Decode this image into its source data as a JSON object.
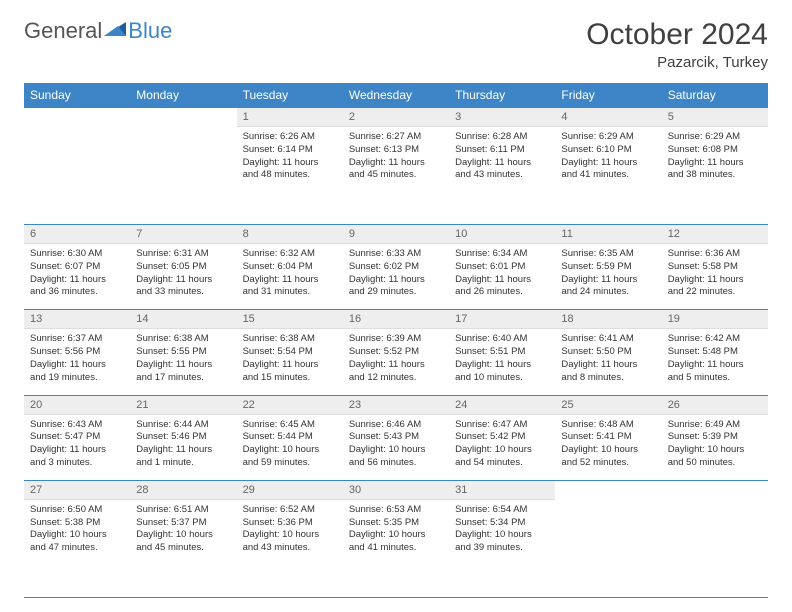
{
  "logo": {
    "part1": "General",
    "part2": "Blue"
  },
  "title": "October 2024",
  "location": "Pazarcik, Turkey",
  "colors": {
    "header_bg": "#3d85c6",
    "header_text": "#ffffff",
    "daynum_bg": "#eeeeee",
    "border": "#3d85c6",
    "logo_accent": "#3d85c6"
  },
  "typography": {
    "title_fontsize": 30,
    "location_fontsize": 15,
    "header_fontsize": 12,
    "daynum_fontsize": 11,
    "body_fontsize": 9.5
  },
  "day_headers": [
    "Sunday",
    "Monday",
    "Tuesday",
    "Wednesday",
    "Thursday",
    "Friday",
    "Saturday"
  ],
  "weeks": [
    [
      null,
      null,
      {
        "n": "1",
        "sr": "Sunrise: 6:26 AM",
        "ss": "Sunset: 6:14 PM",
        "dl": "Daylight: 11 hours and 48 minutes."
      },
      {
        "n": "2",
        "sr": "Sunrise: 6:27 AM",
        "ss": "Sunset: 6:13 PM",
        "dl": "Daylight: 11 hours and 45 minutes."
      },
      {
        "n": "3",
        "sr": "Sunrise: 6:28 AM",
        "ss": "Sunset: 6:11 PM",
        "dl": "Daylight: 11 hours and 43 minutes."
      },
      {
        "n": "4",
        "sr": "Sunrise: 6:29 AM",
        "ss": "Sunset: 6:10 PM",
        "dl": "Daylight: 11 hours and 41 minutes."
      },
      {
        "n": "5",
        "sr": "Sunrise: 6:29 AM",
        "ss": "Sunset: 6:08 PM",
        "dl": "Daylight: 11 hours and 38 minutes."
      }
    ],
    [
      {
        "n": "6",
        "sr": "Sunrise: 6:30 AM",
        "ss": "Sunset: 6:07 PM",
        "dl": "Daylight: 11 hours and 36 minutes."
      },
      {
        "n": "7",
        "sr": "Sunrise: 6:31 AM",
        "ss": "Sunset: 6:05 PM",
        "dl": "Daylight: 11 hours and 33 minutes."
      },
      {
        "n": "8",
        "sr": "Sunrise: 6:32 AM",
        "ss": "Sunset: 6:04 PM",
        "dl": "Daylight: 11 hours and 31 minutes."
      },
      {
        "n": "9",
        "sr": "Sunrise: 6:33 AM",
        "ss": "Sunset: 6:02 PM",
        "dl": "Daylight: 11 hours and 29 minutes."
      },
      {
        "n": "10",
        "sr": "Sunrise: 6:34 AM",
        "ss": "Sunset: 6:01 PM",
        "dl": "Daylight: 11 hours and 26 minutes."
      },
      {
        "n": "11",
        "sr": "Sunrise: 6:35 AM",
        "ss": "Sunset: 5:59 PM",
        "dl": "Daylight: 11 hours and 24 minutes."
      },
      {
        "n": "12",
        "sr": "Sunrise: 6:36 AM",
        "ss": "Sunset: 5:58 PM",
        "dl": "Daylight: 11 hours and 22 minutes."
      }
    ],
    [
      {
        "n": "13",
        "sr": "Sunrise: 6:37 AM",
        "ss": "Sunset: 5:56 PM",
        "dl": "Daylight: 11 hours and 19 minutes."
      },
      {
        "n": "14",
        "sr": "Sunrise: 6:38 AM",
        "ss": "Sunset: 5:55 PM",
        "dl": "Daylight: 11 hours and 17 minutes."
      },
      {
        "n": "15",
        "sr": "Sunrise: 6:38 AM",
        "ss": "Sunset: 5:54 PM",
        "dl": "Daylight: 11 hours and 15 minutes."
      },
      {
        "n": "16",
        "sr": "Sunrise: 6:39 AM",
        "ss": "Sunset: 5:52 PM",
        "dl": "Daylight: 11 hours and 12 minutes."
      },
      {
        "n": "17",
        "sr": "Sunrise: 6:40 AM",
        "ss": "Sunset: 5:51 PM",
        "dl": "Daylight: 11 hours and 10 minutes."
      },
      {
        "n": "18",
        "sr": "Sunrise: 6:41 AM",
        "ss": "Sunset: 5:50 PM",
        "dl": "Daylight: 11 hours and 8 minutes."
      },
      {
        "n": "19",
        "sr": "Sunrise: 6:42 AM",
        "ss": "Sunset: 5:48 PM",
        "dl": "Daylight: 11 hours and 5 minutes."
      }
    ],
    [
      {
        "n": "20",
        "sr": "Sunrise: 6:43 AM",
        "ss": "Sunset: 5:47 PM",
        "dl": "Daylight: 11 hours and 3 minutes."
      },
      {
        "n": "21",
        "sr": "Sunrise: 6:44 AM",
        "ss": "Sunset: 5:46 PM",
        "dl": "Daylight: 11 hours and 1 minute."
      },
      {
        "n": "22",
        "sr": "Sunrise: 6:45 AM",
        "ss": "Sunset: 5:44 PM",
        "dl": "Daylight: 10 hours and 59 minutes."
      },
      {
        "n": "23",
        "sr": "Sunrise: 6:46 AM",
        "ss": "Sunset: 5:43 PM",
        "dl": "Daylight: 10 hours and 56 minutes."
      },
      {
        "n": "24",
        "sr": "Sunrise: 6:47 AM",
        "ss": "Sunset: 5:42 PM",
        "dl": "Daylight: 10 hours and 54 minutes."
      },
      {
        "n": "25",
        "sr": "Sunrise: 6:48 AM",
        "ss": "Sunset: 5:41 PM",
        "dl": "Daylight: 10 hours and 52 minutes."
      },
      {
        "n": "26",
        "sr": "Sunrise: 6:49 AM",
        "ss": "Sunset: 5:39 PM",
        "dl": "Daylight: 10 hours and 50 minutes."
      }
    ],
    [
      {
        "n": "27",
        "sr": "Sunrise: 6:50 AM",
        "ss": "Sunset: 5:38 PM",
        "dl": "Daylight: 10 hours and 47 minutes."
      },
      {
        "n": "28",
        "sr": "Sunrise: 6:51 AM",
        "ss": "Sunset: 5:37 PM",
        "dl": "Daylight: 10 hours and 45 minutes."
      },
      {
        "n": "29",
        "sr": "Sunrise: 6:52 AM",
        "ss": "Sunset: 5:36 PM",
        "dl": "Daylight: 10 hours and 43 minutes."
      },
      {
        "n": "30",
        "sr": "Sunrise: 6:53 AM",
        "ss": "Sunset: 5:35 PM",
        "dl": "Daylight: 10 hours and 41 minutes."
      },
      {
        "n": "31",
        "sr": "Sunrise: 6:54 AM",
        "ss": "Sunset: 5:34 PM",
        "dl": "Daylight: 10 hours and 39 minutes."
      },
      null,
      null
    ]
  ]
}
